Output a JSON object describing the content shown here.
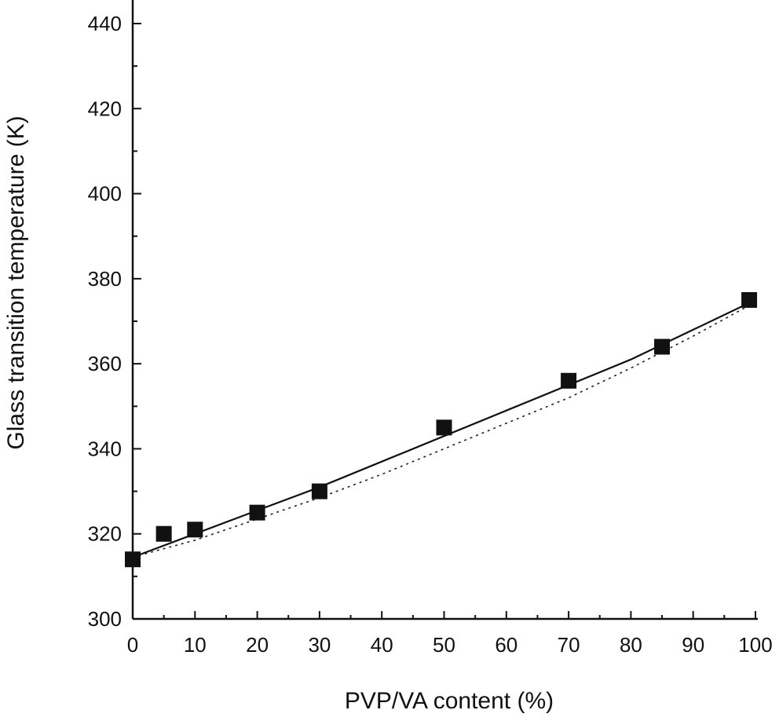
{
  "chart_data": {
    "type": "scatter",
    "xlabel": "PVP/VA content (%)",
    "ylabel": "Glass transition temperature (K)",
    "xlim": [
      0,
      100
    ],
    "ylim": [
      300,
      445
    ],
    "x_ticks": [
      0,
      10,
      20,
      30,
      40,
      50,
      60,
      70,
      80,
      90,
      100
    ],
    "y_ticks": [
      300,
      320,
      340,
      360,
      380,
      400,
      420,
      440
    ],
    "grid": false,
    "series": [
      {
        "style": "markers",
        "marker": "filled-square",
        "x": [
          0,
          5,
          10,
          20,
          30,
          50,
          70,
          85,
          99
        ],
        "y": [
          314,
          320,
          321,
          325,
          330,
          345,
          356,
          364,
          375
        ]
      },
      {
        "style": "solid-line",
        "x": [
          0,
          10,
          20,
          30,
          40,
          50,
          60,
          70,
          80,
          90,
          100
        ],
        "y": [
          314.5,
          320,
          325.5,
          331,
          337,
          343,
          349,
          355,
          361,
          368,
          375
        ]
      },
      {
        "style": "dotted-line",
        "x": [
          0,
          10,
          20,
          30,
          40,
          50,
          60,
          70,
          80,
          90,
          100
        ],
        "y": [
          314.5,
          318.5,
          323.5,
          328.5,
          334,
          340,
          346,
          352,
          359,
          366.5,
          374.5
        ]
      }
    ]
  }
}
